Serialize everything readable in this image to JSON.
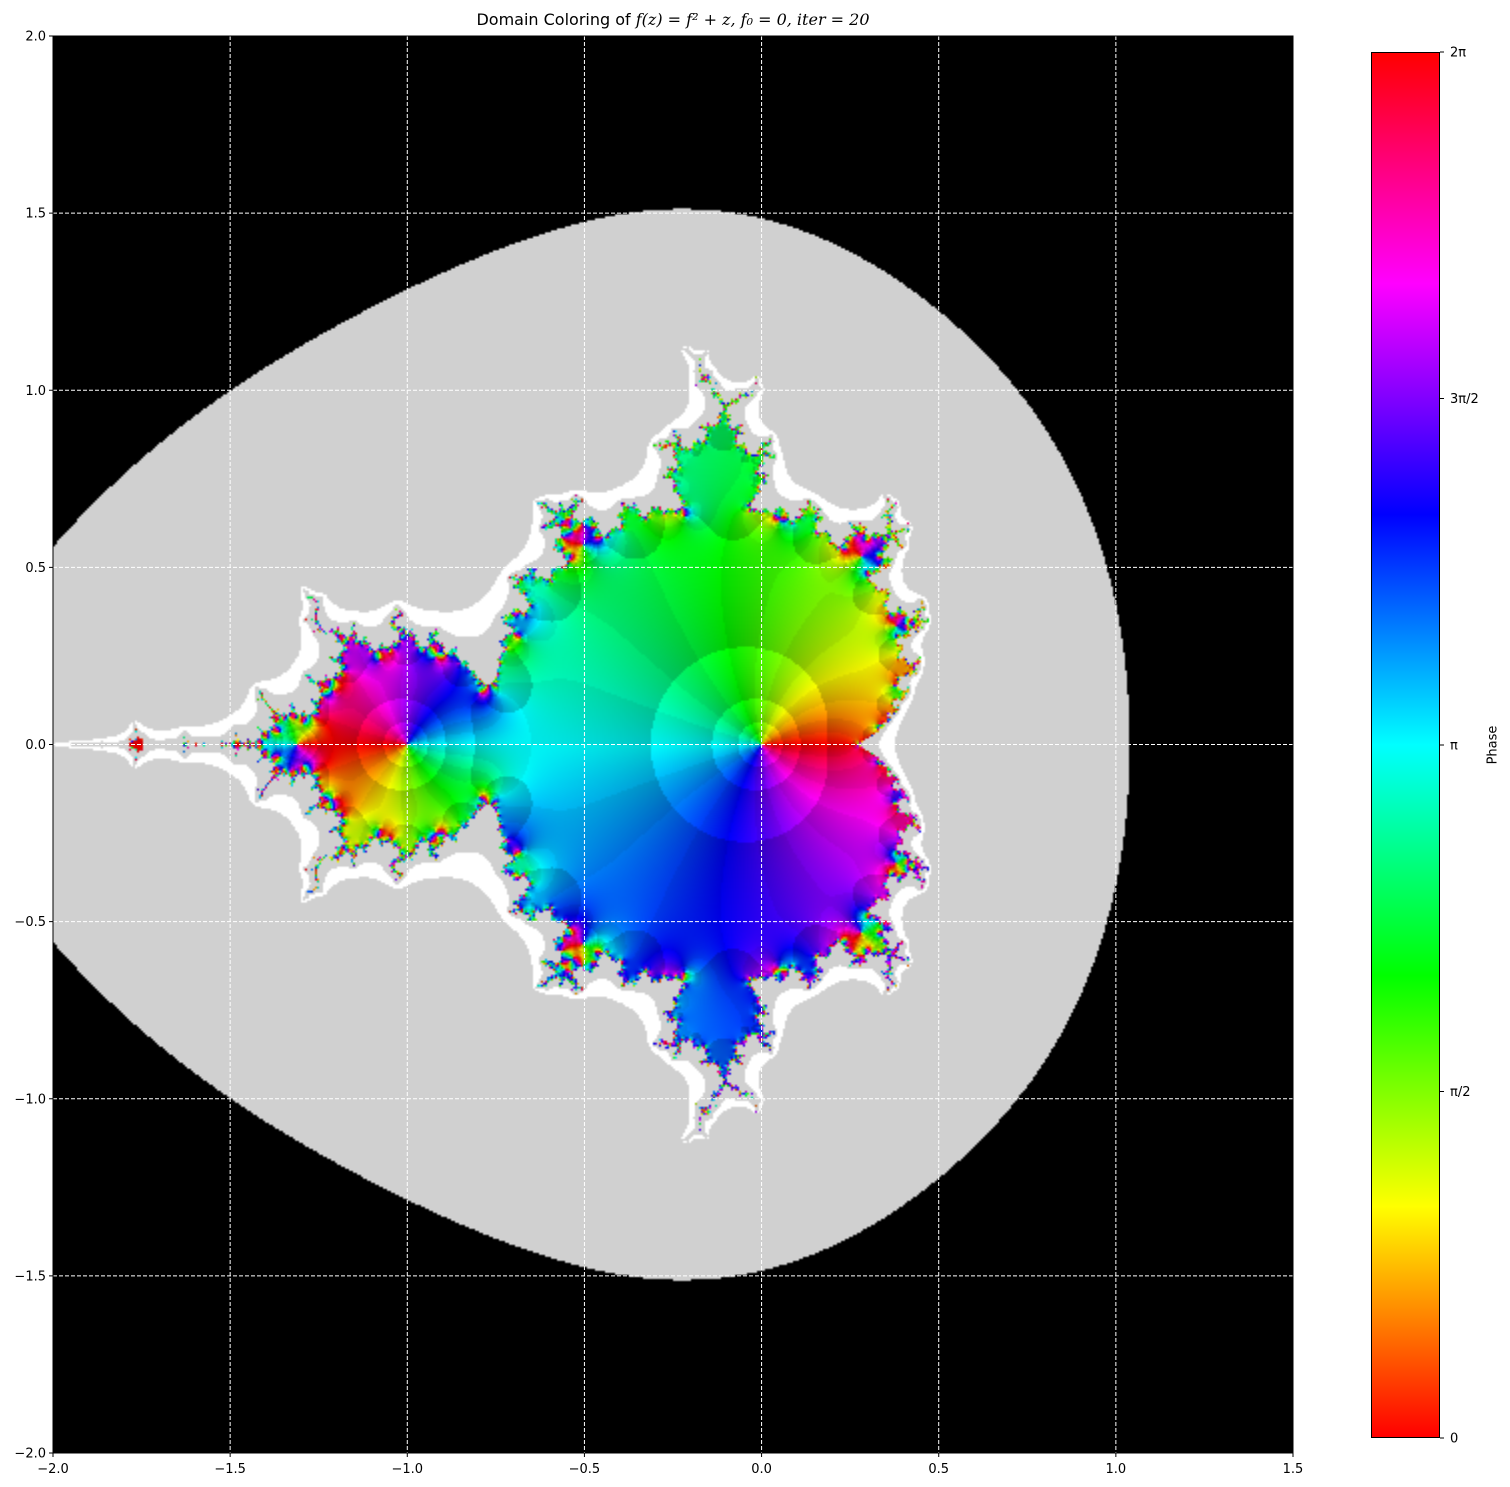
{
  "title_parts": {
    "prefix": "Domain Coloring of ",
    "formula": "f(z) = f² + z, f₀ = 0, iter = 20"
  },
  "colors": {
    "outside": "#000000",
    "escape_band": "#d0d0d0",
    "grid": "#ffffff"
  },
  "chart_data": {
    "type": "heatmap",
    "description_type": "domain coloring",
    "function": "f(z) = f^2 + z",
    "f0": 0,
    "iterations": 20,
    "xlim": [
      -2.0,
      1.5
    ],
    "ylim": [
      -2.0,
      2.0
    ],
    "x_ticks": [
      -2.0,
      -1.5,
      -1.0,
      -0.5,
      0.0,
      0.5,
      1.0,
      1.5
    ],
    "x_tick_labels": [
      "−2.0",
      "−1.5",
      "−1.0",
      "−0.5",
      "0.0",
      "0.5",
      "1.0",
      "1.5"
    ],
    "y_ticks": [
      -2.0,
      -1.5,
      -1.0,
      -0.5,
      0.0,
      0.5,
      1.0,
      1.5,
      2.0
    ],
    "y_tick_labels": [
      "−2.0",
      "−1.5",
      "−1.0",
      "−0.5",
      "0.0",
      "0.5",
      "1.0",
      "1.5",
      "2.0"
    ],
    "grid": true,
    "grid_style": "dashed",
    "colorbar": {
      "label": "Phase",
      "range": [
        0,
        6.283185307179586
      ],
      "colormap": "hsv",
      "ticks": [
        0,
        1.5707963267948966,
        3.141592653589793,
        4.71238898038469,
        6.283185307179586
      ],
      "tick_labels": [
        "0",
        "π/2",
        "π",
        "3π/2",
        "2π"
      ]
    }
  }
}
